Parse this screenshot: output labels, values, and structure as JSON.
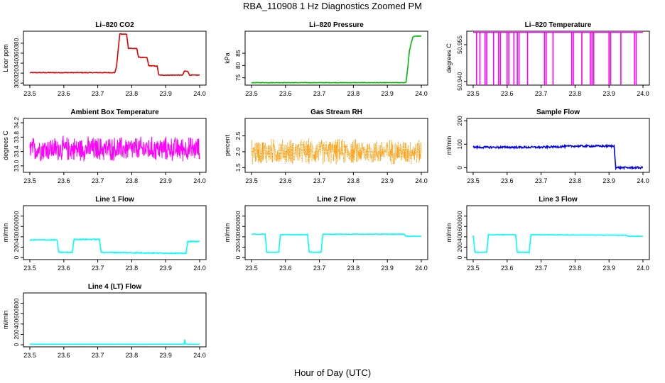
{
  "page": {
    "title": "RBA_110908  1 Hz Diagnostics Zoomed PM",
    "x_axis_title": "Hour of Day (UTC)"
  },
  "chart_data": [
    {
      "type": "line",
      "title": "Li–820 CO2",
      "ylabel": "Licor ppm",
      "color": "#e00000",
      "xlim": [
        23.5,
        24.0
      ],
      "ylim": [
        296,
        404
      ],
      "xticks": [
        "23.5",
        "23.6",
        "23.7",
        "23.8",
        "23.9",
        "24.0"
      ],
      "yticks": [
        300,
        320,
        340,
        360,
        380
      ],
      "series": [
        {
          "noise": 0.6,
          "x": [
            23.5,
            23.75,
            23.755,
            23.765,
            23.77,
            23.785,
            23.79,
            23.815,
            23.82,
            23.845,
            23.85,
            23.875,
            23.88,
            23.95,
            23.955,
            23.965,
            23.97,
            24.0
          ],
          "y": [
            321,
            321,
            332,
            399,
            398,
            398,
            370,
            369,
            352,
            351,
            335,
            334,
            316,
            316,
            324,
            324,
            316,
            316
          ]
        }
      ]
    },
    {
      "type": "line",
      "title": "Li–820 Pressure",
      "ylabel": "kPa",
      "color": "#00bb00",
      "xlim": [
        23.5,
        24.0
      ],
      "ylim": [
        72,
        94
      ],
      "xticks": [
        "23.5",
        "23.6",
        "23.7",
        "23.8",
        "23.9",
        "24.0"
      ],
      "yticks": [
        75,
        80,
        85
      ],
      "series": [
        {
          "noise": 0.08,
          "x": [
            23.5,
            23.95,
            23.955,
            23.96,
            23.965,
            23.97,
            23.975,
            23.98,
            24.0
          ],
          "y": [
            73,
            73,
            73.2,
            79,
            86,
            89,
            91.5,
            92,
            92
          ]
        }
      ]
    },
    {
      "type": "spikes",
      "title": "Li–820 Temperature",
      "ylabel": "degrees C",
      "color": "#ff00ff",
      "xlim": [
        23.5,
        24.0
      ],
      "ylim": [
        50.9385,
        50.9605
      ],
      "xticks": [
        "23.5",
        "23.6",
        "23.7",
        "23.8",
        "23.9",
        "24.0"
      ],
      "yticks": [
        50.94,
        50.955
      ],
      "ytick_labels": [
        "50.940",
        "50.955"
      ],
      "top": 50.96,
      "bottom": 50.9385,
      "spikes": [
        23.51,
        23.52,
        23.535,
        23.54,
        23.56,
        23.575,
        23.58,
        23.6,
        23.605,
        23.62,
        23.63,
        23.635,
        23.66,
        23.71,
        23.715,
        23.735,
        23.79,
        23.795,
        23.82,
        23.845,
        23.85,
        23.855,
        23.9,
        23.905,
        23.935,
        23.975,
        23.98
      ]
    },
    {
      "type": "noise",
      "title": "Ambient Box Temperature",
      "ylabel": "degrees C",
      "color": "#ff00ff",
      "xlim": [
        23.5,
        24.0
      ],
      "ylim": [
        32.82,
        34.32
      ],
      "xticks": [
        "23.5",
        "23.6",
        "23.7",
        "23.8",
        "23.9",
        "24.0"
      ],
      "yticks": [
        33.0,
        33.4,
        33.8,
        34.2
      ],
      "ytick_labels": [
        "33.0",
        "33.4",
        "33.8",
        "34.2"
      ],
      "center": 33.47,
      "amplitude": 0.38,
      "points": 600,
      "style": "line"
    },
    {
      "type": "noise",
      "title": "Gas Stream RH",
      "ylabel": "percent",
      "color": "#ff9900",
      "xlim": [
        23.5,
        24.0
      ],
      "ylim": [
        1.35,
        3.05
      ],
      "xticks": [
        "23.5",
        "23.6",
        "23.7",
        "23.8",
        "23.9",
        "24.0"
      ],
      "yticks": [
        1.5,
        2.0,
        2.5
      ],
      "ytick_labels": [
        "1.5",
        "2.0",
        "2.5"
      ],
      "center": 2.0,
      "amplitude": 0.45,
      "points": 700,
      "style": "dots"
    },
    {
      "type": "line",
      "title": "Sample Flow",
      "ylabel": "ml/min",
      "color": "#0000ee",
      "xlim": [
        23.5,
        24.0
      ],
      "ylim": [
        -20,
        210
      ],
      "xticks": [
        "23.5",
        "23.6",
        "23.7",
        "23.8",
        "23.9",
        "24.0"
      ],
      "yticks": [
        0,
        100,
        200
      ],
      "series": [
        {
          "noise": 4,
          "x": [
            23.5,
            23.6,
            23.7,
            23.8,
            23.9,
            23.915,
            23.92,
            24.0
          ],
          "y": [
            87,
            87,
            87,
            92,
            92,
            92,
            0,
            0
          ]
        }
      ]
    },
    {
      "type": "line",
      "title": "Line 1 Flow",
      "ylabel": "ml/min",
      "color": "#00ffff",
      "xlim": [
        23.5,
        24.0
      ],
      "ylim": [
        -40,
        1000
      ],
      "xticks": [
        "23.5",
        "23.6",
        "23.7",
        "23.8",
        "23.9",
        "24.0"
      ],
      "yticks": [
        0,
        200,
        400,
        600,
        800
      ],
      "series": [
        {
          "noise": 8,
          "x": [
            23.5,
            23.505,
            23.58,
            23.585,
            23.625,
            23.63,
            23.705,
            23.71,
            23.96,
            23.965,
            24.0
          ],
          "y": [
            330,
            340,
            340,
            100,
            100,
            350,
            350,
            100,
            80,
            310,
            310
          ]
        }
      ]
    },
    {
      "type": "line",
      "title": "Line 2 Flow",
      "ylabel": "ml/min",
      "color": "#00ffff",
      "xlim": [
        23.5,
        24.0
      ],
      "ylim": [
        -40,
        1000
      ],
      "xticks": [
        "23.5",
        "23.6",
        "23.7",
        "23.8",
        "23.9",
        "24.0"
      ],
      "yticks": [
        0,
        200,
        400,
        600,
        800
      ],
      "series": [
        {
          "noise": 5,
          "x": [
            23.5,
            23.54,
            23.545,
            23.58,
            23.585,
            23.665,
            23.67,
            23.705,
            23.71,
            23.95,
            23.955,
            24.0
          ],
          "y": [
            450,
            450,
            100,
            100,
            440,
            440,
            100,
            100,
            450,
            450,
            410,
            410
          ]
        }
      ]
    },
    {
      "type": "line",
      "title": "Line 3 Flow",
      "ylabel": "ml/min",
      "color": "#00ffff",
      "xlim": [
        23.5,
        24.0
      ],
      "ylim": [
        -40,
        1000
      ],
      "xticks": [
        "23.5",
        "23.6",
        "23.7",
        "23.8",
        "23.9",
        "24.0"
      ],
      "yticks": [
        0,
        200,
        400,
        600,
        800
      ],
      "series": [
        {
          "noise": 5,
          "x": [
            23.5,
            23.505,
            23.54,
            23.545,
            23.625,
            23.63,
            23.665,
            23.67,
            23.95,
            23.955,
            24.0
          ],
          "y": [
            430,
            100,
            100,
            440,
            440,
            100,
            100,
            440,
            430,
            410,
            410
          ]
        }
      ]
    },
    {
      "type": "line",
      "title": "Line 4 (LT) Flow",
      "ylabel": "ml/min",
      "color": "#00ffff",
      "xlim": [
        23.5,
        24.0
      ],
      "ylim": [
        -40,
        1000
      ],
      "xticks": [
        "23.5",
        "23.6",
        "23.7",
        "23.8",
        "23.9",
        "24.0"
      ],
      "yticks": [
        0,
        200,
        400,
        600,
        800
      ],
      "series": [
        {
          "noise": 2,
          "x": [
            23.5,
            23.955,
            23.956,
            23.958,
            23.96,
            24.0
          ],
          "y": [
            10,
            10,
            100,
            20,
            10,
            10
          ]
        }
      ]
    }
  ]
}
